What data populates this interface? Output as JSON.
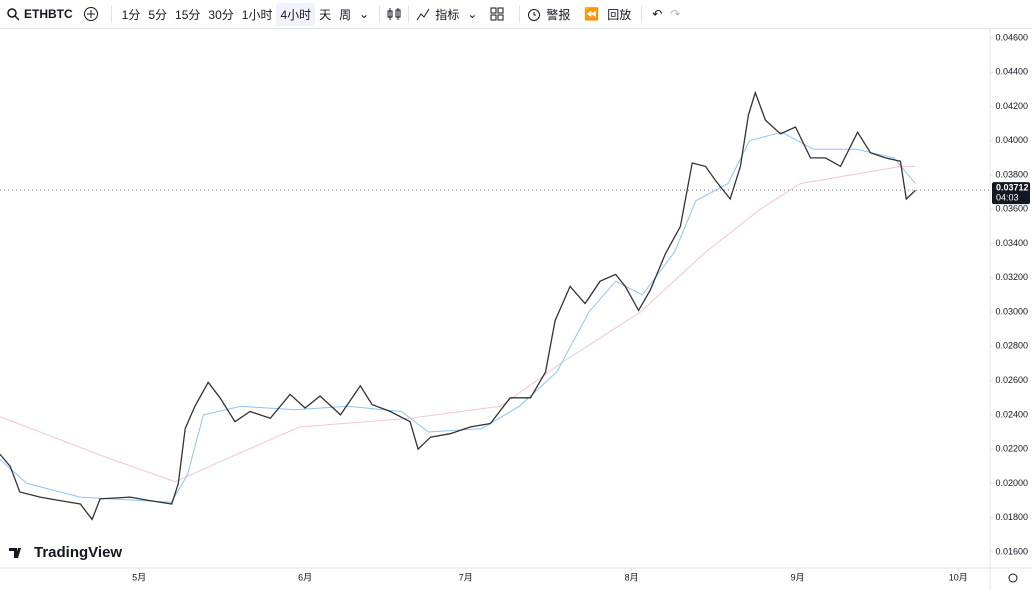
{
  "toolbar": {
    "symbol": "ETHBTC",
    "intervals": [
      "1分",
      "5分",
      "15分",
      "30分",
      "1小时",
      "4小时",
      "天",
      "周"
    ],
    "indicators": "指标",
    "alert": "警报",
    "replay": "回放"
  },
  "watermark": "TradingView",
  "chart_data": {
    "type": "line",
    "grid": false,
    "xlim": [
      0,
      184
    ],
    "xticks": [
      {
        "value": 26,
        "label": "5月"
      },
      {
        "value": 57,
        "label": "6月"
      },
      {
        "value": 87,
        "label": "7月"
      },
      {
        "value": 118,
        "label": "8月"
      },
      {
        "value": 149,
        "label": "9月"
      },
      {
        "value": 179,
        "label": "10月"
      }
    ],
    "ylim": [
      0.01524,
      0.04652
    ],
    "yticks": [
      {
        "value": 0.016,
        "label": "0.01600"
      },
      {
        "value": 0.018,
        "label": "0.01800"
      },
      {
        "value": 0.02,
        "label": "0.02000"
      },
      {
        "value": 0.022,
        "label": "0.02200"
      },
      {
        "value": 0.024,
        "label": "0.02400"
      },
      {
        "value": 0.026,
        "label": "0.02600"
      },
      {
        "value": 0.028,
        "label": "0.02800"
      },
      {
        "value": 0.03,
        "label": "0.03000"
      },
      {
        "value": 0.032,
        "label": "0.03200"
      },
      {
        "value": 0.034,
        "label": "0.03400"
      },
      {
        "value": 0.036,
        "label": "0.03600"
      },
      {
        "value": 0.038,
        "label": "0.03800"
      },
      {
        "value": 0.04,
        "label": "0.04000"
      },
      {
        "value": 0.042,
        "label": "0.04200"
      },
      {
        "value": 0.044,
        "label": "0.04400"
      },
      {
        "value": 0.046,
        "label": "0.04600"
      }
    ],
    "series": [
      {
        "color": "#f5c6cf",
        "x": [
          0,
          10,
          20,
          32.7,
          45,
          56,
          76.6,
          93.5,
          104.7,
          119.6,
          131.8,
          142,
          149.5,
          158.9,
          168.2,
          171
        ],
        "values": [
          0.0239,
          0.0227,
          0.0215,
          0.0201,
          0.0218,
          0.0233,
          0.0238,
          0.0245,
          0.027,
          0.03,
          0.0335,
          0.036,
          0.0375,
          0.038,
          0.0385,
          0.0385
        ]
      },
      {
        "color": "#90c4f0",
        "x": [
          0,
          5,
          15,
          32,
          35,
          38,
          45,
          55,
          65,
          75,
          80,
          90,
          97,
          104,
          110,
          115,
          120,
          126,
          130,
          136,
          140,
          146,
          152,
          160,
          167,
          171
        ],
        "values": [
          0.0214,
          0.02,
          0.0192,
          0.0189,
          0.0205,
          0.024,
          0.0245,
          0.0243,
          0.0245,
          0.0242,
          0.023,
          0.0232,
          0.0245,
          0.0265,
          0.03,
          0.0318,
          0.031,
          0.0335,
          0.0365,
          0.0375,
          0.04,
          0.0405,
          0.0395,
          0.0395,
          0.039,
          0.0375
        ]
      },
      {
        "color": "#333333",
        "x": [
          0,
          1.9,
          3.7,
          7.5,
          11.2,
          15,
          17.2,
          18.7,
          24.3,
          28,
          32.1,
          33.3,
          34.6,
          36.4,
          38.9,
          41.1,
          43.9,
          46.7,
          50.5,
          54.2,
          57,
          59.8,
          63.6,
          67.3,
          69.5,
          72.9,
          76.6,
          78.1,
          80.4,
          84.1,
          87.9,
          91.6,
          95.3,
          99.1,
          101.9,
          103.7,
          106.5,
          109.3,
          112.1,
          115,
          116.8,
          119.3,
          121.5,
          124.3,
          127.1,
          129.3,
          131.8,
          133.6,
          136.4,
          138.3,
          139.8,
          141.1,
          143,
          145.8,
          148.6,
          151.4,
          154.2,
          157,
          160.2,
          162.6,
          165.4,
          168.2,
          169.3,
          171
        ],
        "values": [
          0.0217,
          0.021,
          0.0195,
          0.0192,
          0.019,
          0.0188,
          0.0179,
          0.0191,
          0.0192,
          0.019,
          0.0188,
          0.02,
          0.0232,
          0.0245,
          0.0259,
          0.025,
          0.0236,
          0.0242,
          0.0238,
          0.0252,
          0.0244,
          0.0251,
          0.024,
          0.0257,
          0.0246,
          0.0242,
          0.0236,
          0.022,
          0.0227,
          0.0229,
          0.0233,
          0.0235,
          0.025,
          0.025,
          0.0265,
          0.0295,
          0.0315,
          0.0305,
          0.0318,
          0.0322,
          0.0315,
          0.0301,
          0.0313,
          0.0334,
          0.035,
          0.0387,
          0.0385,
          0.0377,
          0.0366,
          0.0385,
          0.0415,
          0.0428,
          0.0412,
          0.0404,
          0.0408,
          0.039,
          0.039,
          0.0385,
          0.0405,
          0.0393,
          0.039,
          0.0388,
          0.0366,
          0.0371
        ]
      }
    ],
    "last_price": {
      "value": 0.03712,
      "label": "0.03712",
      "countdown": "04:03"
    }
  }
}
